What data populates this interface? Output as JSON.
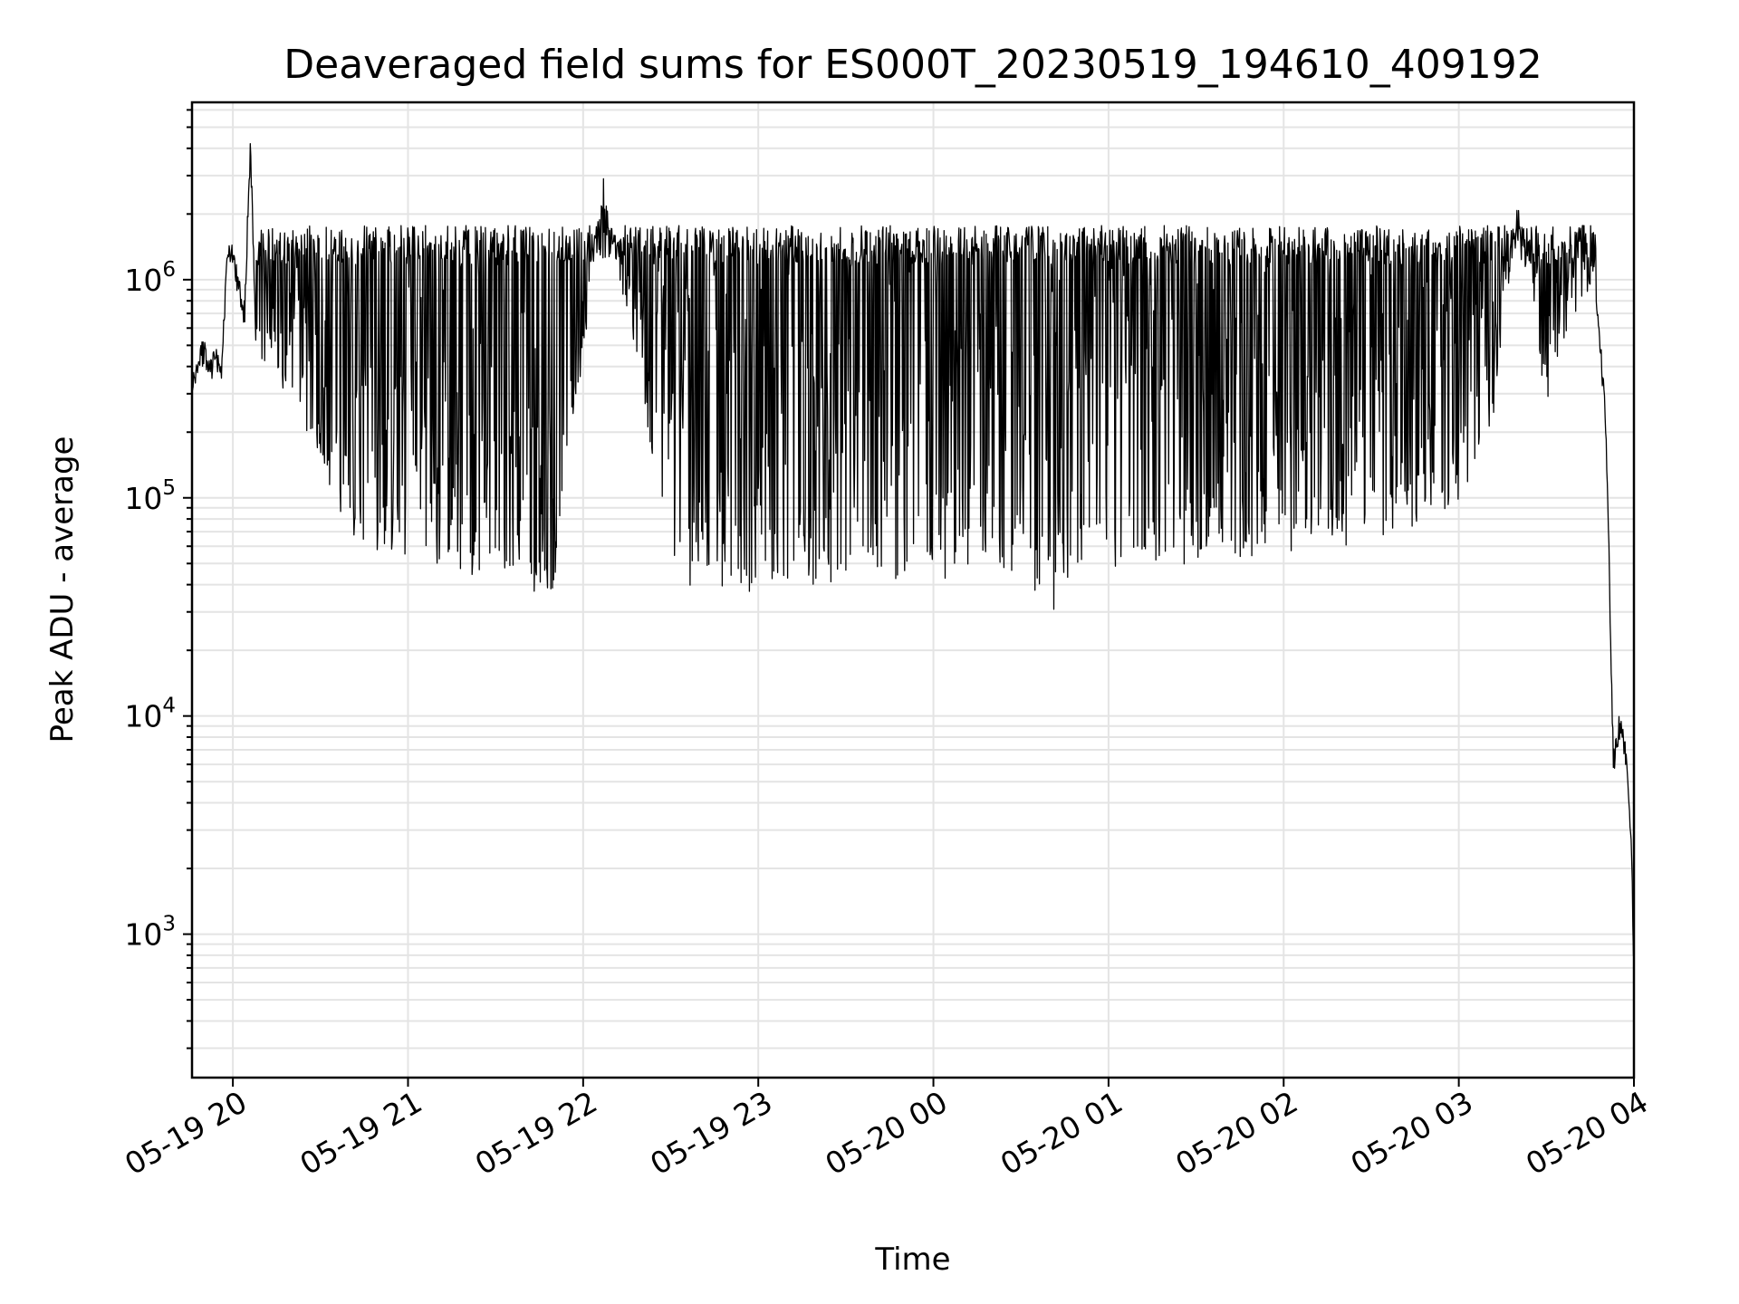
{
  "chart_data": {
    "type": "line",
    "title": "Deaveraged field sums for ES000T_20230519_194610_409192",
    "xlabel": "Time",
    "ylabel": "Peak ADU - average",
    "yscale": "log",
    "ylim": [
      220,
      6500000
    ],
    "xlim": [
      "2023-05-19 19:46",
      "2023-05-20 04:00"
    ],
    "grid": true,
    "line_color": "#000000",
    "x_ticks": [
      {
        "time": "2023-05-19 20:00",
        "label": "05-19 20"
      },
      {
        "time": "2023-05-19 21:00",
        "label": "05-19 21"
      },
      {
        "time": "2023-05-19 22:00",
        "label": "05-19 22"
      },
      {
        "time": "2023-05-19 23:00",
        "label": "05-19 23"
      },
      {
        "time": "2023-05-20 00:00",
        "label": "05-20 00"
      },
      {
        "time": "2023-05-20 01:00",
        "label": "05-20 01"
      },
      {
        "time": "2023-05-20 02:00",
        "label": "05-20 02"
      },
      {
        "time": "2023-05-20 03:00",
        "label": "05-20 03"
      },
      {
        "time": "2023-05-20 04:00",
        "label": "05-20 04"
      }
    ],
    "y_ticks": [
      {
        "value": 1000,
        "base": "10",
        "exp": "3"
      },
      {
        "value": 10000,
        "base": "10",
        "exp": "4"
      },
      {
        "value": 100000,
        "base": "10",
        "exp": "5"
      },
      {
        "value": 1000000,
        "base": "10",
        "exp": "6"
      }
    ],
    "series": [
      {
        "points": [
          [
            "2023-05-19 19:46",
            300000
          ],
          [
            "2023-05-19 19:48",
            420000
          ],
          [
            "2023-05-19 19:50",
            470000
          ],
          [
            "2023-05-19 19:52",
            380000
          ],
          [
            "2023-05-19 19:54",
            440000
          ],
          [
            "2023-05-19 19:56",
            360000
          ],
          [
            "2023-05-19 19:58",
            1200000
          ],
          [
            "2023-05-19 20:00",
            1350000
          ],
          [
            "2023-05-19 20:02",
            900000
          ],
          [
            "2023-05-19 20:04",
            700000
          ],
          [
            "2023-05-19 20:06",
            4200000
          ],
          [
            "2023-05-19 20:08",
            500000
          ],
          [
            "2023-05-19 20:12",
            450000
          ],
          [
            "2023-05-19 20:16",
            350000
          ],
          [
            "2023-05-19 20:20",
            260000
          ],
          [
            "2023-05-19 20:25",
            200000
          ],
          [
            "2023-05-19 20:30",
            160000
          ],
          [
            "2023-05-19 20:35",
            100000
          ],
          [
            "2023-05-19 20:40",
            75000
          ],
          [
            "2023-05-19 20:50",
            60000
          ],
          [
            "2023-05-19 21:00",
            55000
          ],
          [
            "2023-05-19 21:10",
            50000
          ],
          [
            "2023-05-19 21:30",
            45000
          ],
          [
            "2023-05-19 21:50",
            40000
          ],
          [
            "2023-05-19 22:07",
            2900000
          ],
          [
            "2023-05-19 22:30",
            45000
          ],
          [
            "2023-05-19 23:00",
            42000
          ],
          [
            "2023-05-19 23:30",
            45000
          ],
          [
            "2023-05-20 00:00",
            48000
          ],
          [
            "2023-05-20 00:30",
            50000
          ],
          [
            "2023-05-20 00:36",
            30000
          ],
          [
            "2023-05-20 01:00",
            55000
          ],
          [
            "2023-05-20 01:30",
            55000
          ],
          [
            "2023-05-20 02:00",
            60000
          ],
          [
            "2023-05-20 02:30",
            70000
          ],
          [
            "2023-05-20 03:00",
            100000
          ],
          [
            "2023-05-20 03:10",
            150000
          ],
          [
            "2023-05-20 03:20",
            2200000
          ],
          [
            "2023-05-20 03:30",
            300000
          ],
          [
            "2023-05-20 03:40",
            800000
          ],
          [
            "2023-05-20 03:46",
            950000
          ],
          [
            "2023-05-20 03:48",
            600000
          ],
          [
            "2023-05-20 03:50",
            250000
          ],
          [
            "2023-05-20 03:51",
            120000
          ],
          [
            "2023-05-20 03:52",
            20000
          ],
          [
            "2023-05-20 03:53",
            6000
          ],
          [
            "2023-05-20 03:55",
            9000
          ],
          [
            "2023-05-20 03:57",
            7000
          ],
          [
            "2023-05-20 03:59",
            3000
          ],
          [
            "2023-05-20 04:00",
            700
          ]
        ],
        "oscillation": {
          "start": "2023-05-19 20:08",
          "end": "2023-05-20 03:47",
          "typical_high": 1500000,
          "typical_low": 60000
        }
      }
    ]
  }
}
